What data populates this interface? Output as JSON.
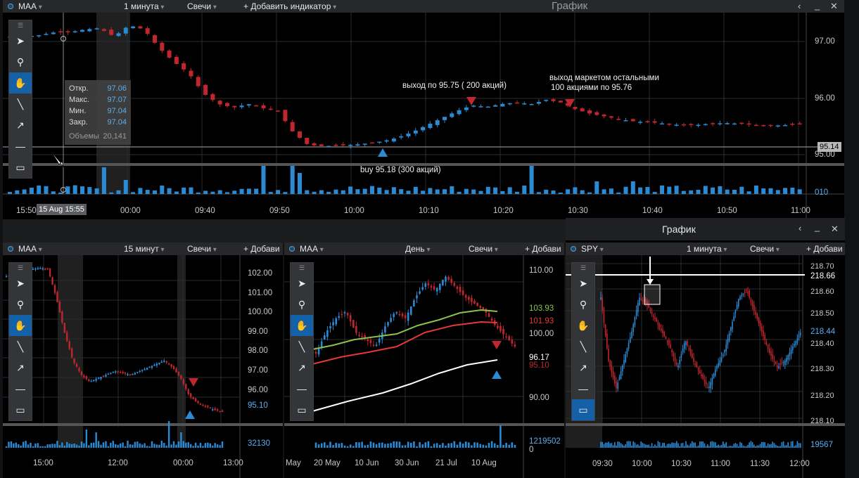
{
  "main": {
    "symbol": "MAA",
    "timeframe": "1 минута",
    "chart_type": "Свечи",
    "add_indicator": "+ Добавить индикатор",
    "window_title": "График",
    "ohlc": {
      "open_label": "Откр.",
      "open": "97.06",
      "high_label": "Макс.",
      "high": "97.07",
      "low_label": "Мин.",
      "low": "97.04",
      "close_label": "Закр.",
      "close": "97.04",
      "volume_label": "Объемы",
      "volume": "20,141"
    },
    "annotations": {
      "exit1": "выход по 95.75 ( 200 акций)",
      "exit2_line1": "выход маркетом остальными",
      "exit2_line2": "100 акциями по 95.76",
      "buy": "buy 95.18 (300 акций)"
    },
    "price_labels": [
      "97.00",
      "96.00",
      "95.00"
    ],
    "current_price": "95.14",
    "volume_axis_label": "010",
    "cursor_time": "15 Aug 15:55",
    "time_labels": [
      "15:50",
      "00:00",
      "09:40",
      "09:50",
      "10:00",
      "10:10",
      "10:20",
      "10:30",
      "10:40",
      "10:50",
      "11:00"
    ]
  },
  "panel_bl": {
    "symbol": "MAA",
    "timeframe": "15 минут",
    "chart_type": "Свечи",
    "add_indicator": "+ Добави",
    "price_labels": [
      "102.00",
      "101.00",
      "100.00",
      "99.00",
      "98.00",
      "97.00",
      "96.00",
      "95.10"
    ],
    "volume_label": "32130",
    "time_labels": [
      "15:00",
      "12:00",
      "00:00",
      "13:00"
    ]
  },
  "panel_bm": {
    "symbol": "MAA",
    "timeframe": "День",
    "chart_type": "Свечи",
    "add_indicator": "+ Добави",
    "price_labels": [
      "110.00",
      "103.93",
      "101.93",
      "100.00",
      "96.17",
      "95.10",
      "90.00"
    ],
    "volume_label": "1219502",
    "volume_zero": "0",
    "time_labels": [
      "May",
      "20 May",
      "10 Jun",
      "30 Jun",
      "21 Jul",
      "10 Aug"
    ]
  },
  "panel_br": {
    "window_title": "График",
    "symbol": "SPY",
    "timeframe": "1 минута",
    "chart_type": "Свечи",
    "add_indicator": "+ Добави",
    "price_labels": [
      "218.70",
      "218.66",
      "218.60",
      "218.50",
      "218.44",
      "218.40",
      "218.30",
      "218.20",
      "218.10"
    ],
    "volume_label": "19567",
    "time_labels": [
      "09:30",
      "10:00",
      "10:30",
      "11:00",
      "11:30",
      "12:00"
    ]
  },
  "colors": {
    "up": "#2a8ad4",
    "down": "#c0262e",
    "bg": "#000000",
    "toolbar": "#26282b",
    "selected_tool": "#1561a8",
    "sma_green": "#8bc34a",
    "sma_red": "#e53935",
    "sma_white": "#ffffff"
  },
  "tools": [
    "pointer-icon",
    "zoom-icon",
    "hand-icon",
    "line-icon",
    "arrow-icon",
    "horizontal-line-icon",
    "rectangle-icon"
  ]
}
